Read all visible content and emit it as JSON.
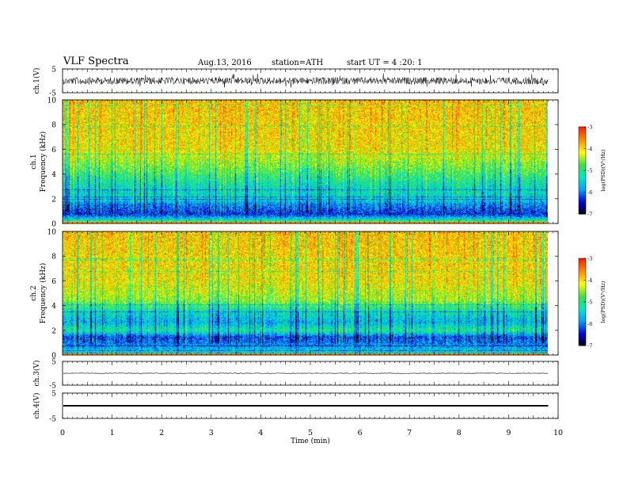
{
  "header": {
    "title": "VLF  Spectra",
    "date": "Aug.13, 2016",
    "station": "station=ATH",
    "start": "start  UT  =   4  :20: 1"
  },
  "colors": {
    "background": "#ffffff",
    "axis": "#000000",
    "colormap": [
      "#000000",
      "#0000e0",
      "#00a0ff",
      "#00e8c8",
      "#40e040",
      "#ffff00",
      "#ff8c00",
      "#ff2000",
      "#ffffff"
    ]
  },
  "chart_data": [
    {
      "type": "line",
      "panel": "ch.1 waveform",
      "ylabel": "ch.1(V)",
      "ylim": [
        -5,
        5
      ],
      "yticks": [
        "5",
        "-5"
      ],
      "xlim": [
        0,
        10
      ],
      "trace": {
        "center": 0,
        "amplitude_v": 1.5,
        "end_min": 9.8
      }
    },
    {
      "type": "heatmap",
      "panel": "ch.1 spectrogram",
      "ylabel_channel": "ch.1",
      "ylabel": "Frequency  (kHz)",
      "ylim": [
        0,
        10
      ],
      "yticks": [
        "0",
        "2",
        "4",
        "6",
        "8",
        "10"
      ],
      "xlim": [
        0,
        10
      ],
      "data_end_min": 9.8,
      "colorbar": {
        "label": "log(PSD)(V²/Hz)",
        "range": [
          -7,
          -3
        ],
        "ticks": [
          "-3",
          "-4",
          "-5",
          "-6",
          "-7"
        ]
      },
      "freq_profile_kHz": [
        {
          "f": 0.0,
          "log_psd": -4.0
        },
        {
          "f": 0.3,
          "log_psd": -5.2
        },
        {
          "f": 0.8,
          "log_psd": -6.3
        },
        {
          "f": 1.2,
          "log_psd": -6.0
        },
        {
          "f": 1.6,
          "log_psd": -5.8
        },
        {
          "f": 2.0,
          "log_psd": -5.3
        },
        {
          "f": 3.0,
          "log_psd": -5.2
        },
        {
          "f": 4.0,
          "log_psd": -4.8
        },
        {
          "f": 5.0,
          "log_psd": -4.4
        },
        {
          "f": 6.0,
          "log_psd": -4.0
        },
        {
          "f": 8.0,
          "log_psd": -3.9
        },
        {
          "f": 10.0,
          "log_psd": -3.8
        }
      ]
    },
    {
      "type": "heatmap",
      "panel": "ch.2 spectrogram",
      "ylabel_channel": "ch.2",
      "ylabel": "Frequency  (kHz)",
      "ylim": [
        0,
        10
      ],
      "yticks": [
        "0",
        "2",
        "4",
        "6",
        "8",
        "10"
      ],
      "xlim": [
        0,
        10
      ],
      "data_end_min": 9.8,
      "colorbar": {
        "label": "log(PSD)(V²/Hz)",
        "range": [
          -7,
          -3
        ],
        "ticks": [
          "-3",
          "-4",
          "-5",
          "-6",
          "-7"
        ]
      },
      "freq_profile_kHz": [
        {
          "f": 0.0,
          "log_psd": -4.8
        },
        {
          "f": 0.5,
          "log_psd": -5.6
        },
        {
          "f": 1.0,
          "log_psd": -5.9
        },
        {
          "f": 1.5,
          "log_psd": -6.1
        },
        {
          "f": 2.0,
          "log_psd": -5.0
        },
        {
          "f": 2.7,
          "log_psd": -5.6
        },
        {
          "f": 3.5,
          "log_psd": -5.2
        },
        {
          "f": 4.5,
          "log_psd": -4.4
        },
        {
          "f": 6.0,
          "log_psd": -4.0
        },
        {
          "f": 8.0,
          "log_psd": -3.9
        },
        {
          "f": 10.0,
          "log_psd": -3.8
        }
      ]
    },
    {
      "type": "line",
      "panel": "ch.3 waveform",
      "ylabel": "ch.3(V)",
      "ylim": [
        -5,
        5
      ],
      "yticks": [
        "5",
        "-5"
      ],
      "xlim": [
        0,
        10
      ],
      "trace": {
        "center": 0,
        "amplitude_v": 0.1,
        "end_min": 9.8
      }
    },
    {
      "type": "line",
      "panel": "ch.4 waveform",
      "ylabel": "ch.4(V)",
      "ylim": [
        -5,
        5
      ],
      "yticks": [
        "5",
        "-5"
      ],
      "xlim": [
        0,
        10
      ],
      "xlabel": "Time  (min)",
      "xticks": [
        "0",
        "1",
        "2",
        "3",
        "4",
        "5",
        "6",
        "7",
        "8",
        "9",
        "10"
      ],
      "trace": {
        "center": 0,
        "amplitude_v": 0.3,
        "end_min": 9.8
      }
    }
  ]
}
